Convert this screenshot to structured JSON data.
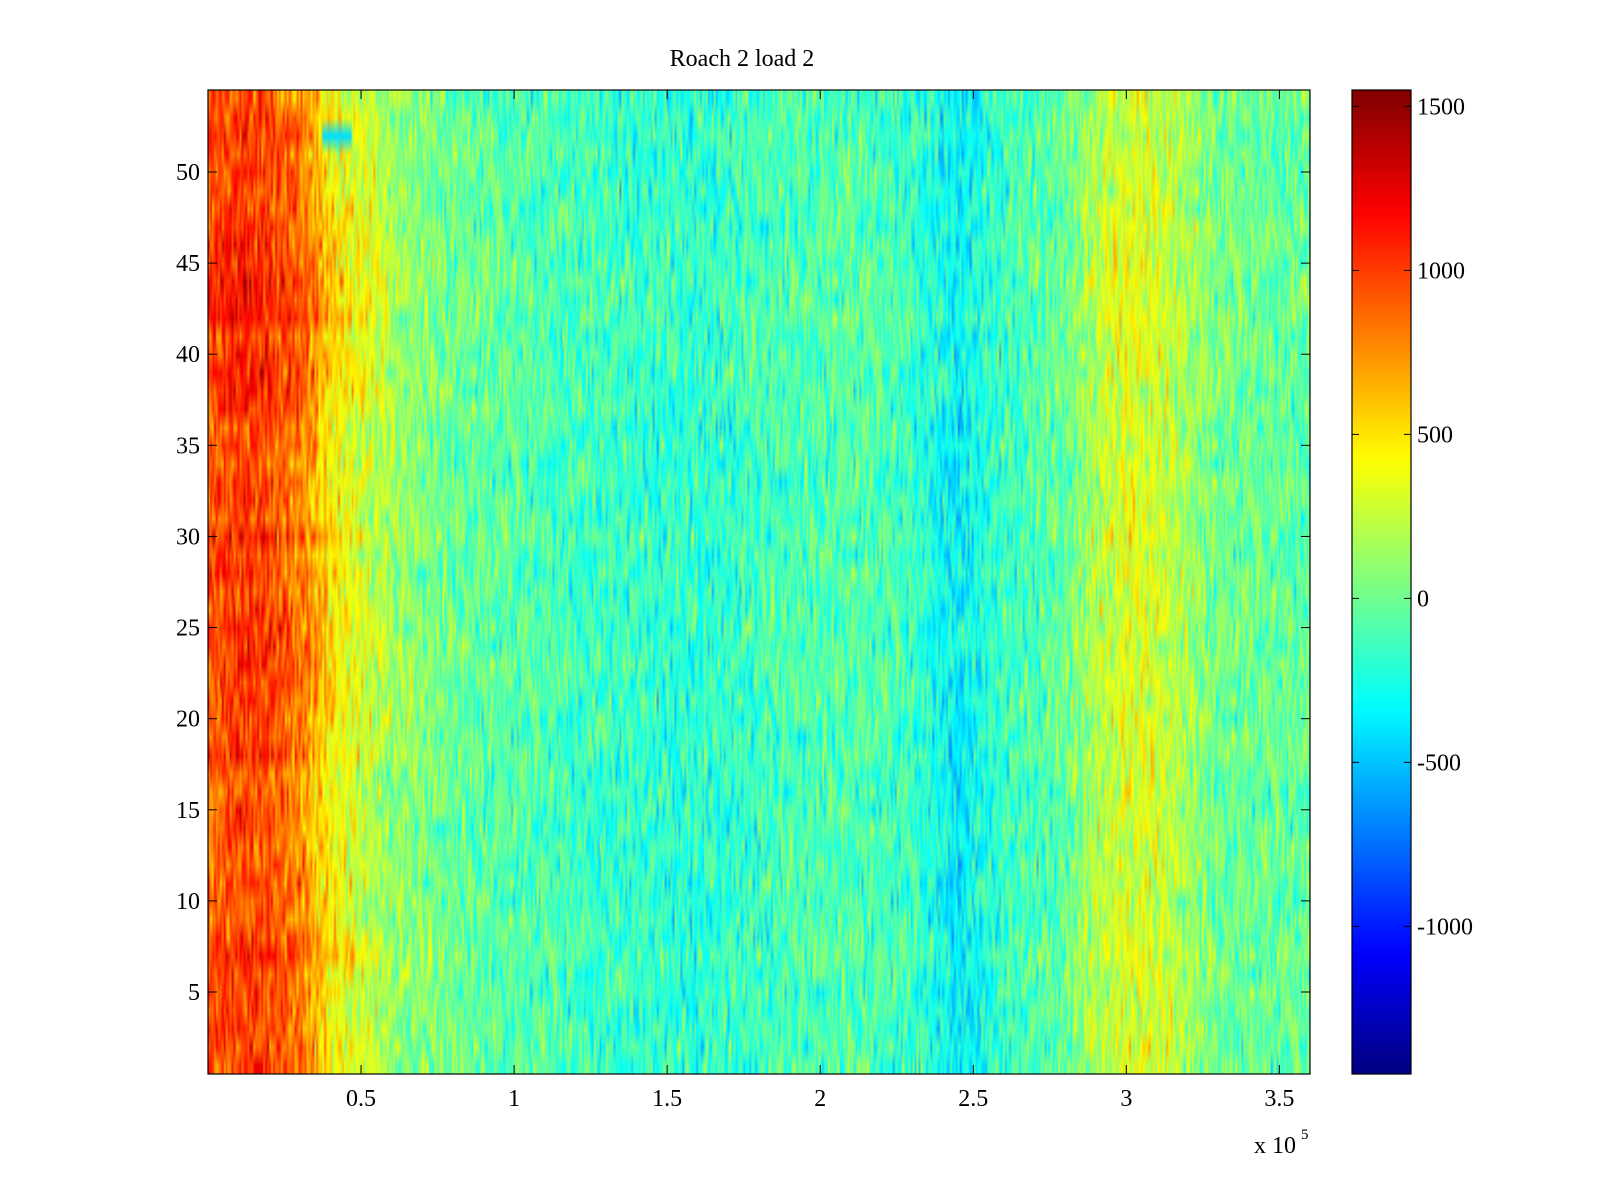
{
  "chart_data": {
    "type": "heatmap",
    "title": "Roach 2 load 2",
    "xlabel": "",
    "ylabel": "",
    "x_multiplier_label": "x 10",
    "x_multiplier_exponent": "5",
    "xlim": [
      0,
      3.6
    ],
    "ylim": [
      0.5,
      54.5
    ],
    "rows": 54,
    "x_ticks": [
      {
        "value": 0.5,
        "label": "0.5"
      },
      {
        "value": 1,
        "label": "1"
      },
      {
        "value": 1.5,
        "label": "1.5"
      },
      {
        "value": 2,
        "label": "2"
      },
      {
        "value": 2.5,
        "label": "2.5"
      },
      {
        "value": 3,
        "label": "3"
      },
      {
        "value": 3.5,
        "label": "3.5"
      }
    ],
    "y_ticks": [
      {
        "value": 5,
        "label": "5"
      },
      {
        "value": 10,
        "label": "10"
      },
      {
        "value": 15,
        "label": "15"
      },
      {
        "value": 20,
        "label": "20"
      },
      {
        "value": 25,
        "label": "25"
      },
      {
        "value": 30,
        "label": "30"
      },
      {
        "value": 35,
        "label": "35"
      },
      {
        "value": 40,
        "label": "40"
      },
      {
        "value": 45,
        "label": "45"
      },
      {
        "value": 50,
        "label": "50"
      }
    ],
    "colorbar": {
      "colormap": "jet",
      "range": [
        -1450,
        1550
      ],
      "ticks": [
        {
          "value": 1500,
          "label": "1500"
        },
        {
          "value": 1000,
          "label": "1000"
        },
        {
          "value": 500,
          "label": "500"
        },
        {
          "value": 0,
          "label": "0"
        },
        {
          "value": -500,
          "label": "-500"
        },
        {
          "value": -1000,
          "label": "-1000"
        }
      ]
    },
    "column_profile": {
      "x": [
        0,
        0.1,
        0.2,
        0.3,
        0.35,
        0.4,
        0.5,
        0.6,
        0.8,
        1.0,
        1.3,
        1.6,
        1.9,
        2.1,
        2.3,
        2.45,
        2.6,
        2.8,
        2.9,
        3.0,
        3.1,
        3.2,
        3.3,
        3.45,
        3.6
      ],
      "mean": [
        900,
        1000,
        950,
        800,
        650,
        450,
        280,
        120,
        -20,
        -80,
        -150,
        -200,
        -120,
        -80,
        -150,
        -350,
        -150,
        -30,
        200,
        320,
        280,
        150,
        0,
        -30,
        -30
      ]
    },
    "row_profile": {
      "y": [
        1,
        5,
        7,
        10,
        15,
        20,
        25,
        30,
        33,
        36,
        40,
        43,
        47,
        50,
        52,
        54
      ],
      "mean": [
        0,
        -20,
        120,
        -50,
        0,
        40,
        40,
        30,
        -20,
        20,
        150,
        160,
        80,
        20,
        0,
        -40
      ]
    }
  }
}
